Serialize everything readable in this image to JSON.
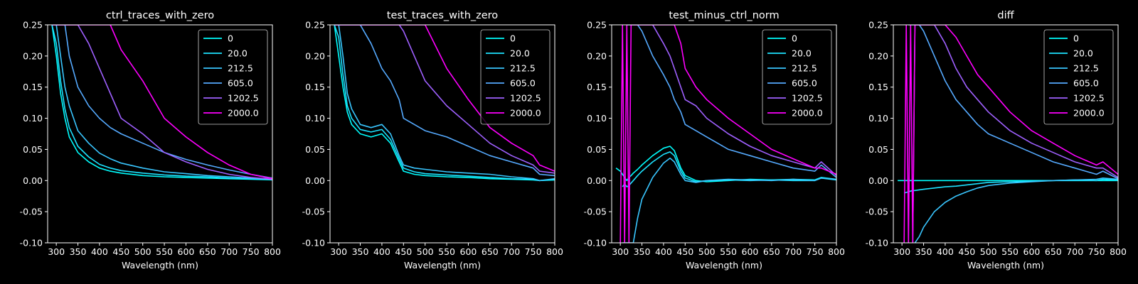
{
  "figure": {
    "background": "#000000",
    "foreground": "#ffffff"
  },
  "chart_data": [
    {
      "type": "line",
      "title": "ctrl_traces_with_zero",
      "xlabel": "Wavelength (nm)",
      "ylabel": "",
      "xlim": [
        280,
        800
      ],
      "ylim": [
        -0.1,
        0.25
      ],
      "xticks": [
        300,
        350,
        400,
        450,
        500,
        550,
        600,
        650,
        700,
        750,
        800
      ],
      "yticks": [
        "-0.10",
        "-0.05",
        "0.00",
        "0.05",
        "0.10",
        "0.15",
        "0.20",
        "0.25"
      ],
      "grid": false,
      "legend": "top-right",
      "x": [
        290,
        300,
        310,
        320,
        330,
        350,
        375,
        400,
        425,
        450,
        500,
        550,
        600,
        650,
        700,
        750,
        800
      ],
      "series": [
        {
          "name": "0",
          "color": "#00ffff",
          "values": [
            0.25,
            0.2,
            0.14,
            0.1,
            0.07,
            0.045,
            0.03,
            0.02,
            0.015,
            0.012,
            0.008,
            0.006,
            0.005,
            0.004,
            0.003,
            0.002,
            0.001
          ]
        },
        {
          "name": "20.0",
          "color": "#1de2ff",
          "values": [
            0.25,
            0.22,
            0.16,
            0.115,
            0.085,
            0.055,
            0.038,
            0.026,
            0.02,
            0.016,
            0.012,
            0.009,
            0.007,
            0.006,
            0.004,
            0.003,
            0.002
          ]
        },
        {
          "name": "212.5",
          "color": "#39c6ff",
          "values": [
            0.25,
            0.25,
            0.2,
            0.15,
            0.12,
            0.08,
            0.06,
            0.044,
            0.035,
            0.028,
            0.02,
            0.014,
            0.011,
            0.008,
            0.006,
            0.004,
            0.003
          ]
        },
        {
          "name": "605.0",
          "color": "#55aaff",
          "values": [
            0.25,
            0.25,
            0.25,
            0.25,
            0.2,
            0.15,
            0.12,
            0.1,
            0.085,
            0.075,
            0.06,
            0.045,
            0.034,
            0.025,
            0.017,
            0.01,
            0.004
          ]
        },
        {
          "name": "1202.5",
          "color": "#9f60ff",
          "values": [
            0.25,
            0.25,
            0.25,
            0.25,
            0.25,
            0.25,
            0.22,
            0.18,
            0.14,
            0.1,
            0.075,
            0.045,
            0.03,
            0.018,
            0.01,
            0.005,
            0.002
          ]
        },
        {
          "name": "2000.0",
          "color": "#ff00ff",
          "values": [
            0.25,
            0.25,
            0.25,
            0.25,
            0.25,
            0.25,
            0.25,
            0.25,
            0.25,
            0.21,
            0.16,
            0.1,
            0.07,
            0.045,
            0.025,
            0.01,
            0.003
          ]
        }
      ]
    },
    {
      "type": "line",
      "title": "test_traces_with_zero",
      "xlabel": "Wavelength (nm)",
      "ylabel": "",
      "xlim": [
        280,
        800
      ],
      "ylim": [
        -0.1,
        0.25
      ],
      "xticks": [
        300,
        350,
        400,
        450,
        500,
        550,
        600,
        650,
        700,
        750,
        800
      ],
      "yticks": [
        "-0.10",
        "-0.05",
        "0.00",
        "0.05",
        "0.10",
        "0.15",
        "0.20",
        "0.25"
      ],
      "grid": false,
      "legend": "top-right",
      "x": [
        290,
        300,
        310,
        320,
        330,
        350,
        375,
        400,
        420,
        440,
        450,
        475,
        500,
        550,
        600,
        650,
        700,
        750,
        765,
        800
      ],
      "series": [
        {
          "name": "0",
          "color": "#00ffff",
          "values": [
            0.25,
            0.2,
            0.15,
            0.11,
            0.09,
            0.075,
            0.07,
            0.075,
            0.06,
            0.03,
            0.015,
            0.01,
            0.008,
            0.006,
            0.005,
            0.003,
            0.002,
            0.001,
            0.0,
            0.001
          ]
        },
        {
          "name": "20.0",
          "color": "#1de2ff",
          "values": [
            0.25,
            0.23,
            0.17,
            0.12,
            0.1,
            0.082,
            0.078,
            0.082,
            0.066,
            0.035,
            0.02,
            0.014,
            0.011,
            0.009,
            0.007,
            0.005,
            0.003,
            0.002,
            0.0,
            0.002
          ]
        },
        {
          "name": "212.5",
          "color": "#39c6ff",
          "values": [
            0.25,
            0.25,
            0.2,
            0.14,
            0.115,
            0.09,
            0.085,
            0.09,
            0.075,
            0.04,
            0.025,
            0.02,
            0.018,
            0.014,
            0.012,
            0.01,
            0.006,
            0.003,
            0.0,
            0.003
          ]
        },
        {
          "name": "605.0",
          "color": "#55aaff",
          "values": [
            0.25,
            0.25,
            0.25,
            0.25,
            0.25,
            0.25,
            0.22,
            0.18,
            0.16,
            0.13,
            0.1,
            0.09,
            0.08,
            0.07,
            0.055,
            0.04,
            0.03,
            0.02,
            0.01,
            0.008
          ]
        },
        {
          "name": "1202.5",
          "color": "#9f60ff",
          "values": [
            0.25,
            0.25,
            0.25,
            0.25,
            0.25,
            0.25,
            0.25,
            0.25,
            0.25,
            0.25,
            0.24,
            0.2,
            0.16,
            0.12,
            0.09,
            0.06,
            0.04,
            0.025,
            0.015,
            0.012
          ]
        },
        {
          "name": "2000.0",
          "color": "#ff00ff",
          "values": [
            0.25,
            0.25,
            0.25,
            0.25,
            0.25,
            0.25,
            0.25,
            0.25,
            0.25,
            0.25,
            0.25,
            0.25,
            0.25,
            0.18,
            0.13,
            0.085,
            0.06,
            0.04,
            0.025,
            0.015
          ]
        }
      ]
    },
    {
      "type": "line",
      "title": "test_minus_ctrl_norm",
      "xlabel": "Wavelength (nm)",
      "ylabel": "",
      "xlim": [
        280,
        800
      ],
      "ylim": [
        -0.1,
        0.25
      ],
      "xticks": [
        300,
        350,
        400,
        450,
        500,
        550,
        600,
        650,
        700,
        750,
        800
      ],
      "yticks": [
        "-0.10",
        "-0.05",
        "0.00",
        "0.05",
        "0.10",
        "0.15",
        "0.20",
        "0.25"
      ],
      "grid": false,
      "legend": "top-right",
      "x": [
        290,
        300,
        305,
        310,
        315,
        320,
        325,
        330,
        340,
        350,
        375,
        400,
        415,
        425,
        440,
        450,
        475,
        500,
        550,
        600,
        650,
        700,
        750,
        765,
        800
      ],
      "series": [
        {
          "name": "0",
          "color": "#00ffff",
          "values": [
            0.02,
            0.015,
            0.01,
            0.005,
            0.0,
            0.005,
            0.008,
            0.012,
            0.018,
            0.025,
            0.04,
            0.052,
            0.055,
            0.048,
            0.02,
            0.008,
            0.0,
            -0.002,
            0.0,
            0.002,
            0.001,
            0.002,
            0.001,
            0.005,
            0.002
          ]
        },
        {
          "name": "20.0",
          "color": "#1de2ff",
          "values": [
            null,
            null,
            -0.01,
            -0.005,
            -0.01,
            -0.008,
            -0.004,
            0.0,
            0.008,
            0.015,
            0.03,
            0.042,
            0.046,
            0.04,
            0.015,
            0.004,
            -0.002,
            0.0,
            0.001,
            0.0,
            0.001,
            0.0,
            0.0,
            0.004,
            0.001
          ]
        },
        {
          "name": "212.5",
          "color": "#39c6ff",
          "values": [
            null,
            null,
            -0.1,
            -0.1,
            -0.1,
            -0.1,
            -0.1,
            -0.1,
            -0.06,
            -0.03,
            0.005,
            0.028,
            0.036,
            0.03,
            0.01,
            0.0,
            -0.003,
            0.0,
            0.002,
            0.001,
            0.0,
            0.002,
            0.0,
            0.004,
            0.002
          ]
        },
        {
          "name": "605.0",
          "color": "#55aaff",
          "values": [
            null,
            null,
            null,
            null,
            0.25,
            0.25,
            0.25,
            0.25,
            0.25,
            0.24,
            0.2,
            0.17,
            0.15,
            0.13,
            0.11,
            0.09,
            0.08,
            0.07,
            0.05,
            0.04,
            0.03,
            0.02,
            0.015,
            0.025,
            0.005
          ]
        },
        {
          "name": "1202.5",
          "color": "#9f60ff",
          "values": [
            null,
            null,
            null,
            null,
            null,
            null,
            null,
            0.25,
            0.25,
            0.25,
            0.25,
            0.22,
            0.2,
            0.18,
            0.15,
            0.13,
            0.12,
            0.1,
            0.075,
            0.055,
            0.04,
            0.03,
            0.02,
            0.03,
            0.008
          ]
        },
        {
          "name": "2000.0",
          "color": "#ff00ff",
          "values": [
            null,
            -0.1,
            0.25,
            -0.1,
            0.25,
            -0.1,
            0.25,
            0.25,
            0.25,
            0.25,
            0.25,
            0.25,
            0.25,
            0.25,
            0.22,
            0.18,
            0.15,
            0.13,
            0.1,
            0.075,
            0.05,
            0.035,
            0.02,
            0.02,
            0.01
          ]
        }
      ]
    },
    {
      "type": "line",
      "title": "diff",
      "xlabel": "Wavelength (nm)",
      "ylabel": "",
      "xlim": [
        280,
        800
      ],
      "ylim": [
        -0.1,
        0.25
      ],
      "xticks": [
        300,
        350,
        400,
        450,
        500,
        550,
        600,
        650,
        700,
        750,
        800
      ],
      "yticks": [
        "-0.10",
        "-0.05",
        "0.00",
        "0.05",
        "0.10",
        "0.15",
        "0.20",
        "0.25"
      ],
      "grid": false,
      "legend": "top-right",
      "x": [
        290,
        300,
        305,
        310,
        315,
        320,
        325,
        330,
        340,
        350,
        375,
        400,
        425,
        450,
        475,
        500,
        550,
        600,
        650,
        700,
        750,
        765,
        800
      ],
      "series": [
        {
          "name": "0",
          "color": "#00ffff",
          "values": [
            0.0,
            0.0,
            0.0,
            0.0,
            0.0,
            0.0,
            0.0,
            0.0,
            0.0,
            0.0,
            0.0,
            0.0,
            0.0,
            0.0,
            0.0,
            0.0,
            0.0,
            0.0,
            0.0,
            0.0,
            0.0,
            0.0,
            0.0
          ]
        },
        {
          "name": "20.0",
          "color": "#1de2ff",
          "values": [
            null,
            null,
            -0.02,
            -0.019,
            -0.018,
            -0.017,
            -0.016,
            -0.016,
            -0.015,
            -0.014,
            -0.012,
            -0.01,
            -0.009,
            -0.007,
            -0.005,
            -0.003,
            -0.002,
            -0.001,
            0.0,
            0.001,
            0.0,
            0.002,
            0.001
          ]
        },
        {
          "name": "212.5",
          "color": "#39c6ff",
          "values": [
            null,
            null,
            null,
            null,
            null,
            null,
            null,
            -0.1,
            -0.09,
            -0.075,
            -0.05,
            -0.035,
            -0.025,
            -0.018,
            -0.012,
            -0.008,
            -0.004,
            -0.002,
            0.0,
            0.001,
            0.002,
            0.004,
            0.002
          ]
        },
        {
          "name": "605.0",
          "color": "#55aaff",
          "values": [
            null,
            null,
            null,
            null,
            0.25,
            0.25,
            0.25,
            0.25,
            0.25,
            0.24,
            0.2,
            0.16,
            0.13,
            0.11,
            0.09,
            0.075,
            0.06,
            0.045,
            0.03,
            0.02,
            0.01,
            0.015,
            0.003
          ]
        },
        {
          "name": "1202.5",
          "color": "#9f60ff",
          "values": [
            null,
            null,
            null,
            null,
            null,
            null,
            -0.1,
            0.25,
            0.25,
            0.25,
            0.25,
            0.22,
            0.18,
            0.15,
            0.13,
            0.11,
            0.08,
            0.06,
            0.045,
            0.03,
            0.02,
            0.02,
            0.005
          ]
        },
        {
          "name": "2000.0",
          "color": "#ff00ff",
          "values": [
            null,
            null,
            -0.1,
            0.25,
            -0.1,
            0.25,
            -0.1,
            0.25,
            0.25,
            0.25,
            0.25,
            0.25,
            0.23,
            0.2,
            0.17,
            0.15,
            0.11,
            0.08,
            0.06,
            0.04,
            0.025,
            0.03,
            0.01
          ]
        }
      ]
    }
  ]
}
